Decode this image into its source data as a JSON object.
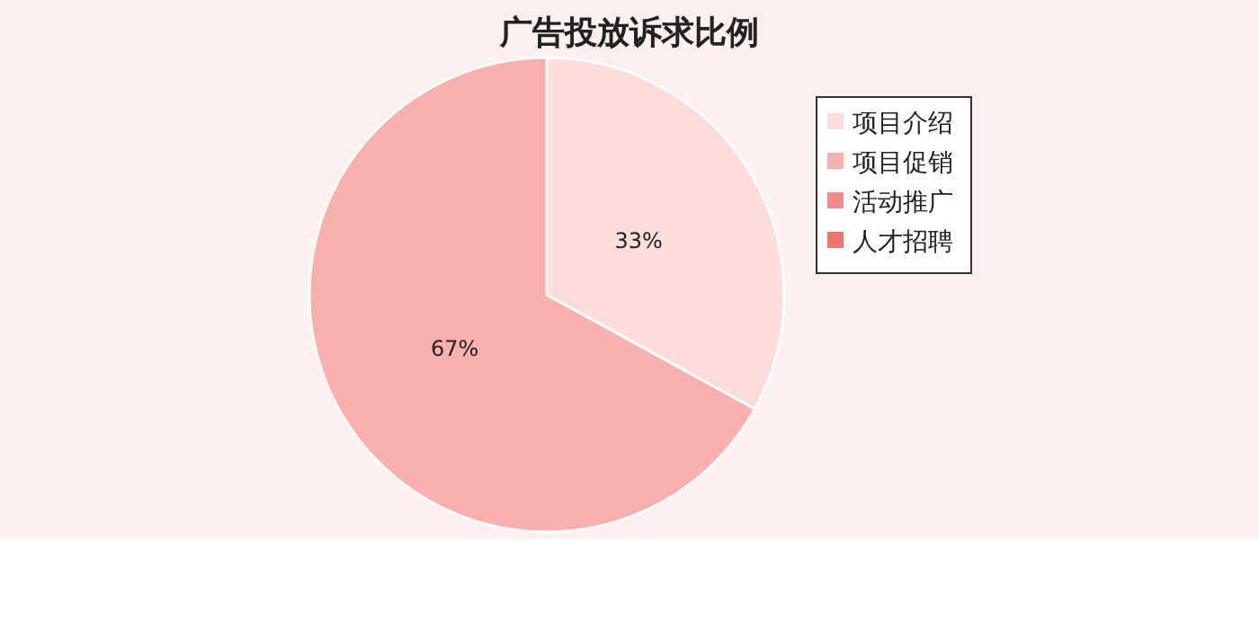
{
  "chart_data": {
    "type": "pie",
    "title": "广告投放诉求比例",
    "categories": [
      "项目介绍",
      "项目促销",
      "活动推广",
      "人才招聘"
    ],
    "values": [
      33,
      67,
      0,
      0
    ],
    "colors": [
      "#fddcdc",
      "#fbb0b0",
      "#f48a8a",
      "#f07272"
    ],
    "value_labels": [
      "33%",
      "67%",
      null,
      null
    ],
    "legend": "top right"
  }
}
